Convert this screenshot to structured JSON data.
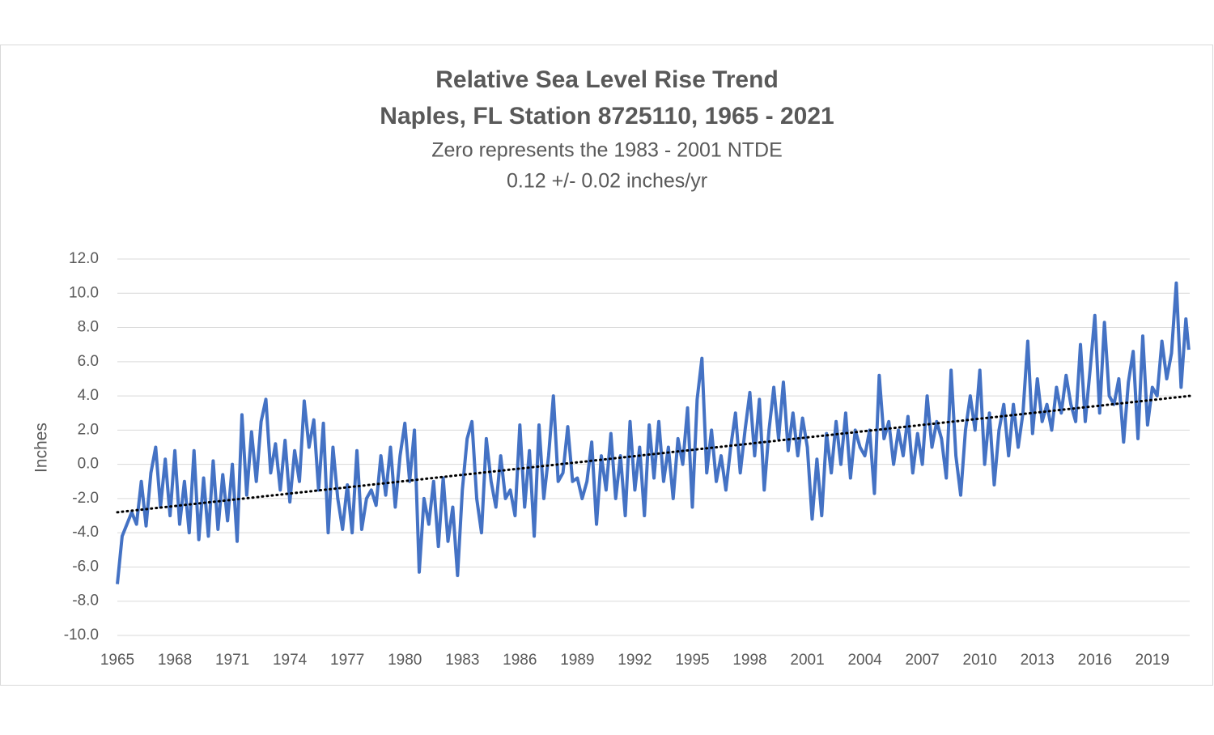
{
  "chart_data": {
    "type": "line",
    "title": "Relative Sea Level Rise Trend",
    "subtitle": "Naples, FL Station 8725110, 1965 - 2021",
    "annotations": [
      "Zero represents the 1983 - 2001 NTDE",
      "0.12 +/- 0.02 inches/yr"
    ],
    "ylabel": "Inches",
    "xlim": [
      1965,
      2020.95
    ],
    "xticks": [
      1965,
      1968,
      1971,
      1974,
      1977,
      1980,
      1983,
      1986,
      1989,
      1992,
      1995,
      1998,
      2001,
      2004,
      2007,
      2010,
      2013,
      2016,
      2019
    ],
    "ylim": [
      -10,
      12
    ],
    "yticks": [
      {
        "value": -10,
        "label": "-10.0"
      },
      {
        "value": -8,
        "label": "-8.0"
      },
      {
        "value": -6,
        "label": "-6.0"
      },
      {
        "value": -4,
        "label": "-4.0"
      },
      {
        "value": -2,
        "label": "-2.0"
      },
      {
        "value": 0,
        "label": "0.0"
      },
      {
        "value": 2,
        "label": "2.0"
      },
      {
        "value": 4,
        "label": "4.0"
      },
      {
        "value": 6,
        "label": "6.0"
      },
      {
        "value": 8,
        "label": "8.0"
      },
      {
        "value": 10,
        "label": "10.0"
      },
      {
        "value": 12,
        "label": "12.0"
      }
    ],
    "grid": true,
    "x": [
      1965,
      1965.25,
      1965.5,
      1965.75,
      1966,
      1966.25,
      1966.5,
      1966.75,
      1967,
      1967.25,
      1967.5,
      1967.75,
      1968,
      1968.25,
      1968.5,
      1968.75,
      1969,
      1969.25,
      1969.5,
      1969.75,
      1970,
      1970.25,
      1970.5,
      1970.75,
      1971,
      1971.25,
      1971.5,
      1971.75,
      1972,
      1972.25,
      1972.5,
      1972.75,
      1973,
      1973.25,
      1973.5,
      1973.75,
      1974,
      1974.25,
      1974.5,
      1974.75,
      1975,
      1975.25,
      1975.5,
      1975.75,
      1976,
      1976.25,
      1976.5,
      1976.75,
      1977,
      1977.25,
      1977.5,
      1977.75,
      1978,
      1978.25,
      1978.5,
      1978.75,
      1979,
      1979.25,
      1979.5,
      1979.75,
      1980,
      1980.25,
      1980.5,
      1980.75,
      1981,
      1981.25,
      1981.5,
      1981.75,
      1982,
      1982.25,
      1982.5,
      1982.75,
      1983,
      1983.25,
      1983.5,
      1983.75,
      1984,
      1984.25,
      1984.5,
      1984.75,
      1985,
      1985.25,
      1985.5,
      1985.75,
      1986,
      1986.25,
      1986.5,
      1986.75,
      1987,
      1987.25,
      1987.5,
      1987.75,
      1988,
      1988.25,
      1988.5,
      1988.75,
      1989,
      1989.25,
      1989.5,
      1989.75,
      1990,
      1990.25,
      1990.5,
      1990.75,
      1991,
      1991.25,
      1991.5,
      1991.75,
      1992,
      1992.25,
      1992.5,
      1992.75,
      1993,
      1993.25,
      1993.5,
      1993.75,
      1994,
      1994.25,
      1994.5,
      1994.75,
      1995,
      1995.25,
      1995.5,
      1995.75,
      1996,
      1996.25,
      1996.5,
      1996.75,
      1997,
      1997.25,
      1997.5,
      1997.75,
      1998,
      1998.25,
      1998.5,
      1998.75,
      1999,
      1999.25,
      1999.5,
      1999.75,
      2000,
      2000.25,
      2000.5,
      2000.75,
      2001,
      2001.25,
      2001.5,
      2001.75,
      2002,
      2002.25,
      2002.5,
      2002.75,
      2003,
      2003.25,
      2003.5,
      2003.75,
      2004,
      2004.25,
      2004.5,
      2004.75,
      2005,
      2005.25,
      2005.5,
      2005.75,
      2006,
      2006.25,
      2006.5,
      2006.75,
      2007,
      2007.25,
      2007.5,
      2007.75,
      2008,
      2008.25,
      2008.5,
      2008.75,
      2009,
      2009.25,
      2009.5,
      2009.75,
      2010,
      2010.25,
      2010.5,
      2010.75,
      2011,
      2011.25,
      2011.5,
      2011.75,
      2012,
      2012.25,
      2012.5,
      2012.75,
      2013,
      2013.25,
      2013.5,
      2013.75,
      2014,
      2014.25,
      2014.5,
      2014.75,
      2015,
      2015.25,
      2015.5,
      2015.75,
      2016,
      2016.25,
      2016.5,
      2016.75,
      2017,
      2017.25,
      2017.5,
      2017.75,
      2018,
      2018.25,
      2018.5,
      2018.75,
      2019,
      2019.25,
      2019.5,
      2019.75,
      2020,
      2020.25,
      2020.5,
      2020.75,
      2020.9
    ],
    "series": [
      {
        "color": "#4472c4",
        "values": [
          -7.0,
          -4.2,
          -3.5,
          -2.8,
          -3.5,
          -1.0,
          -3.6,
          -0.5,
          1.0,
          -2.5,
          0.3,
          -3.0,
          0.8,
          -3.5,
          -1.0,
          -4.0,
          0.8,
          -4.4,
          -0.8,
          -4.2,
          0.2,
          -3.8,
          -0.6,
          -3.3,
          0.0,
          -4.5,
          2.9,
          -1.8,
          1.9,
          -1.0,
          2.5,
          3.8,
          -0.5,
          1.2,
          -1.5,
          1.4,
          -2.2,
          0.8,
          -1.0,
          3.7,
          1.0,
          2.6,
          -1.5,
          2.4,
          -4.0,
          1.0,
          -2.0,
          -3.8,
          -1.2,
          -4.0,
          0.8,
          -3.8,
          -2.0,
          -1.5,
          -2.4,
          0.5,
          -1.8,
          1.0,
          -2.5,
          0.5,
          2.4,
          -1.0,
          2.0,
          -6.3,
          -2.0,
          -3.5,
          -1.0,
          -4.8,
          -0.8,
          -4.5,
          -2.5,
          -6.5,
          -1.5,
          1.5,
          2.5,
          -2.0,
          -4.0,
          1.5,
          -1.0,
          -2.5,
          0.5,
          -2.0,
          -1.5,
          -3.0,
          2.3,
          -2.5,
          0.8,
          -4.2,
          2.3,
          -2.0,
          0.5,
          4.0,
          -1.0,
          -0.5,
          2.2,
          -1.0,
          -0.8,
          -2.0,
          -1.0,
          1.3,
          -3.5,
          0.5,
          -1.5,
          1.8,
          -2.0,
          0.5,
          -3.0,
          2.5,
          -1.5,
          1.0,
          -3.0,
          2.3,
          -0.8,
          2.5,
          -1.0,
          1.0,
          -2.0,
          1.5,
          0.0,
          3.3,
          -2.5,
          3.8,
          6.2,
          -0.5,
          2.0,
          -1.0,
          0.5,
          -1.5,
          1.0,
          3.0,
          -0.5,
          2.0,
          4.2,
          0.5,
          3.8,
          -1.5,
          2.0,
          4.5,
          1.5,
          4.8,
          0.8,
          3.0,
          0.5,
          2.7,
          1.0,
          -3.2,
          0.3,
          -3.0,
          1.8,
          -0.5,
          2.5,
          0.0,
          3.0,
          -0.8,
          2.0,
          1.0,
          0.5,
          2.0,
          -1.7,
          5.2,
          1.5,
          2.5,
          0.0,
          2.0,
          0.5,
          2.8,
          -0.5,
          1.8,
          0.0,
          4.0,
          1.0,
          2.5,
          1.5,
          -0.8,
          5.5,
          0.5,
          -1.8,
          2.0,
          4.0,
          2.0,
          5.5,
          0.0,
          3.0,
          -1.2,
          2.0,
          3.5,
          0.5,
          3.5,
          1.0,
          3.0,
          7.2,
          1.8,
          5.0,
          2.5,
          3.5,
          2.0,
          4.5,
          3.0,
          5.2,
          3.5,
          2.5,
          7.0,
          2.5,
          5.5,
          8.7,
          3.0,
          8.3,
          4.0,
          3.5,
          5.0,
          1.3,
          4.8,
          6.6,
          1.5,
          7.5,
          2.3,
          4.5,
          4.0,
          7.2,
          5.0,
          6.5,
          10.6,
          4.5,
          8.5,
          6.7
        ]
      }
    ],
    "trendline": {
      "color": "#000000",
      "x": [
        1965,
        2020.95
      ],
      "values": [
        -2.8,
        4.0
      ]
    }
  }
}
